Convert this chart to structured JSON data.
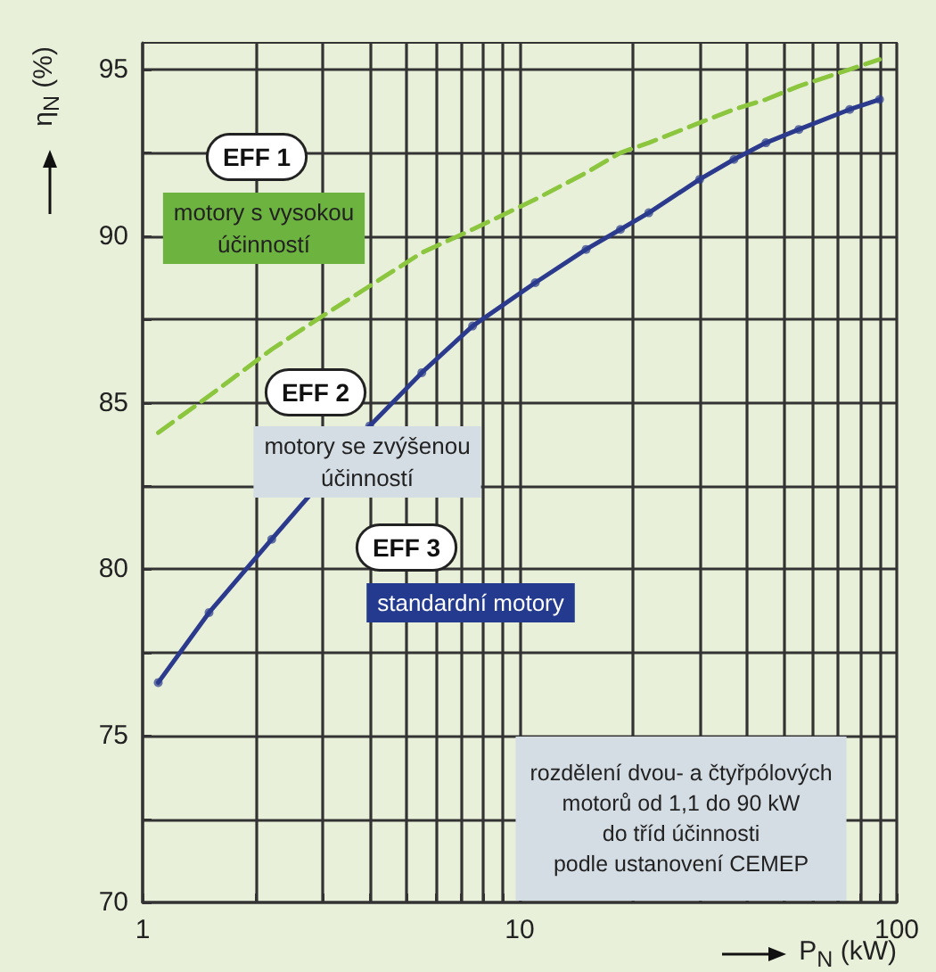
{
  "chart_data": {
    "type": "line",
    "xlabel": "P$_{N}$ (kW)",
    "ylabel": "η$_{N}$ (%)",
    "log": "x",
    "grid": true,
    "xlim": [
      1,
      100
    ],
    "xticks": [
      1,
      {
        "value": 2,
        "label": null
      },
      {
        "value": 3,
        "label": null
      },
      {
        "value": 4,
        "label": null
      },
      {
        "value": 5,
        "label": null
      },
      {
        "value": 6,
        "label": null
      },
      {
        "value": 7,
        "label": null
      },
      {
        "value": 8,
        "label": null
      },
      {
        "value": 9,
        "label": null
      },
      10,
      {
        "value": 20,
        "label": null
      },
      {
        "value": 30,
        "label": null
      },
      {
        "value": 40,
        "label": null
      },
      {
        "value": 50,
        "label": null
      },
      {
        "value": 60,
        "label": null
      },
      {
        "value": 70,
        "label": null
      },
      {
        "value": 80,
        "label": null
      },
      {
        "value": 90,
        "label": null
      },
      100
    ],
    "ylim": [
      70,
      95.8
    ],
    "yticks": [
      70,
      {
        "value": 72.5,
        "label": null
      },
      75,
      {
        "value": 77.5,
        "label": null
      },
      80,
      {
        "value": 82.5,
        "label": null
      },
      85,
      {
        "value": 87.5,
        "label": null
      },
      90,
      {
        "value": 92.5,
        "label": null
      },
      95
    ],
    "x": [
      1.1,
      1.5,
      2.2,
      3,
      4,
      5.5,
      7.5,
      11,
      15,
      18.5,
      22,
      30,
      37,
      45,
      55,
      75,
      90
    ],
    "series": [
      {
        "color": "#8cc63f",
        "line_style": "dashed",
        "marker": "none",
        "values": [
          84.1,
          85.2,
          86.6,
          87.6,
          88.5,
          89.5,
          90.2,
          91.1,
          91.9,
          92.5,
          92.8,
          93.4,
          93.8,
          94.1,
          94.5,
          95.0,
          95.3
        ]
      },
      {
        "color": "#2b3a8c",
        "line_style": "solid",
        "marker": "circle",
        "values": [
          76.6,
          78.7,
          80.9,
          null,
          84.3,
          85.9,
          87.3,
          88.6,
          89.6,
          90.2,
          90.7,
          91.7,
          92.3,
          92.8,
          93.2,
          93.8,
          94.1
        ]
      }
    ],
    "annotations": [
      "EFF 1",
      "motory s vysokou\núčinností",
      "EFF 2",
      "motory se zvýšenou\núčinností",
      "EFF 3",
      "standardní motory",
      "rozdělení dvou- a čtyřpólových\nmotorů od 1,1 do 90 kW\ndo tříd účinnosti\npodle ustanovení CEMEP"
    ]
  }
}
